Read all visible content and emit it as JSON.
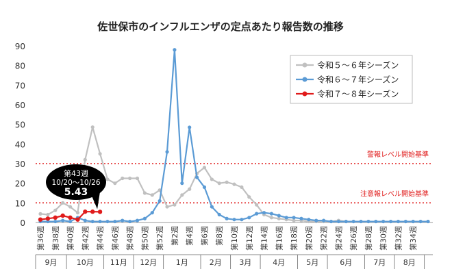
{
  "chart_data": {
    "type": "line",
    "title": "佐世保市のインフルエンザの定点あたり報告数の推移",
    "xlabel": "",
    "ylabel": "",
    "ylim": [
      0,
      90
    ],
    "y_ticks": [
      0,
      10,
      20,
      30,
      40,
      50,
      60,
      70,
      80,
      90
    ],
    "grid": false,
    "legend_position": "top-right",
    "x_labels": [
      "第36週",
      "第38週",
      "第40週",
      "第42週",
      "第44週",
      "第46週",
      "第48週",
      "第50週",
      "第52週",
      "第2週",
      "第4週",
      "第6週",
      "第8週",
      "第10週",
      "第12週",
      "第14週",
      "第16週",
      "第18週",
      "第20週",
      "第22週",
      "第24週",
      "第26週",
      "第28週",
      "第30週",
      "第32週",
      "第34週"
    ],
    "months": [
      "9月",
      "10月",
      "11月",
      "12月",
      "1月",
      "2月",
      "3月",
      "4月",
      "5月",
      "6月",
      "7月",
      "8月"
    ],
    "month_start_index": [
      0,
      4,
      9,
      13,
      17,
      22,
      26,
      30,
      35,
      39,
      44,
      48,
      52
    ],
    "series": [
      {
        "name": "令和５～６年シーズン",
        "color": "#c0c0c0",
        "values": [
          4.4,
          4.0,
          6.2,
          10.0,
          8.0,
          5.0,
          32.0,
          48.6,
          35.0,
          22.0,
          20.0,
          22.5,
          22.5,
          22.5,
          15.0,
          14.0,
          16.5,
          8.0,
          9.0,
          14.0,
          17.0,
          25.0,
          28.0,
          22.0,
          20.0,
          20.5,
          19.5,
          18.0,
          13.0,
          9.0,
          4.0,
          2.5,
          2.0,
          1.5,
          1.0,
          1.0,
          0.5,
          0.5,
          0.5,
          0.5,
          1.0,
          0.5,
          0.5,
          0.5,
          0.5,
          0.5,
          0.5,
          0.5,
          0.5,
          0.5,
          0.5,
          0.5,
          0.5
        ]
      },
      {
        "name": "令和６～７年シーズン",
        "color": "#5b9bd5",
        "values": [
          0.5,
          0.5,
          0.5,
          1.0,
          0.5,
          2.5,
          1.0,
          0.5,
          0.5,
          0.5,
          0.5,
          1.0,
          0.5,
          1.0,
          2.0,
          5.0,
          11.0,
          36.0,
          88.0,
          20.0,
          48.5,
          23.0,
          18.0,
          8.0,
          4.0,
          2.0,
          1.5,
          1.5,
          2.5,
          4.5,
          5.0,
          4.5,
          3.5,
          2.5,
          2.5,
          2.0,
          1.5,
          1.0,
          1.0,
          0.5,
          0.5,
          0.5,
          0.5,
          0.5,
          0.5,
          0.5,
          0.5,
          0.5,
          0.5,
          0.5,
          0.5,
          0.5,
          0.5
        ]
      },
      {
        "name": "令和７～８年シーズン",
        "color": "#e01b1b",
        "values": [
          1.5,
          2.0,
          2.5,
          3.5,
          2.5,
          1.5,
          5.5,
          5.5,
          5.43
        ]
      }
    ],
    "reference_lines": [
      {
        "label": "警報レベル開始基準",
        "value": 30,
        "color": "#e01b1b"
      },
      {
        "label": "注意報レベル開始基準",
        "value": 10,
        "color": "#e01b1b"
      }
    ],
    "callout": {
      "week": "第43週",
      "date": "10/20～10/26",
      "value": "5.43",
      "series_index": 2,
      "point_index": 8
    }
  }
}
